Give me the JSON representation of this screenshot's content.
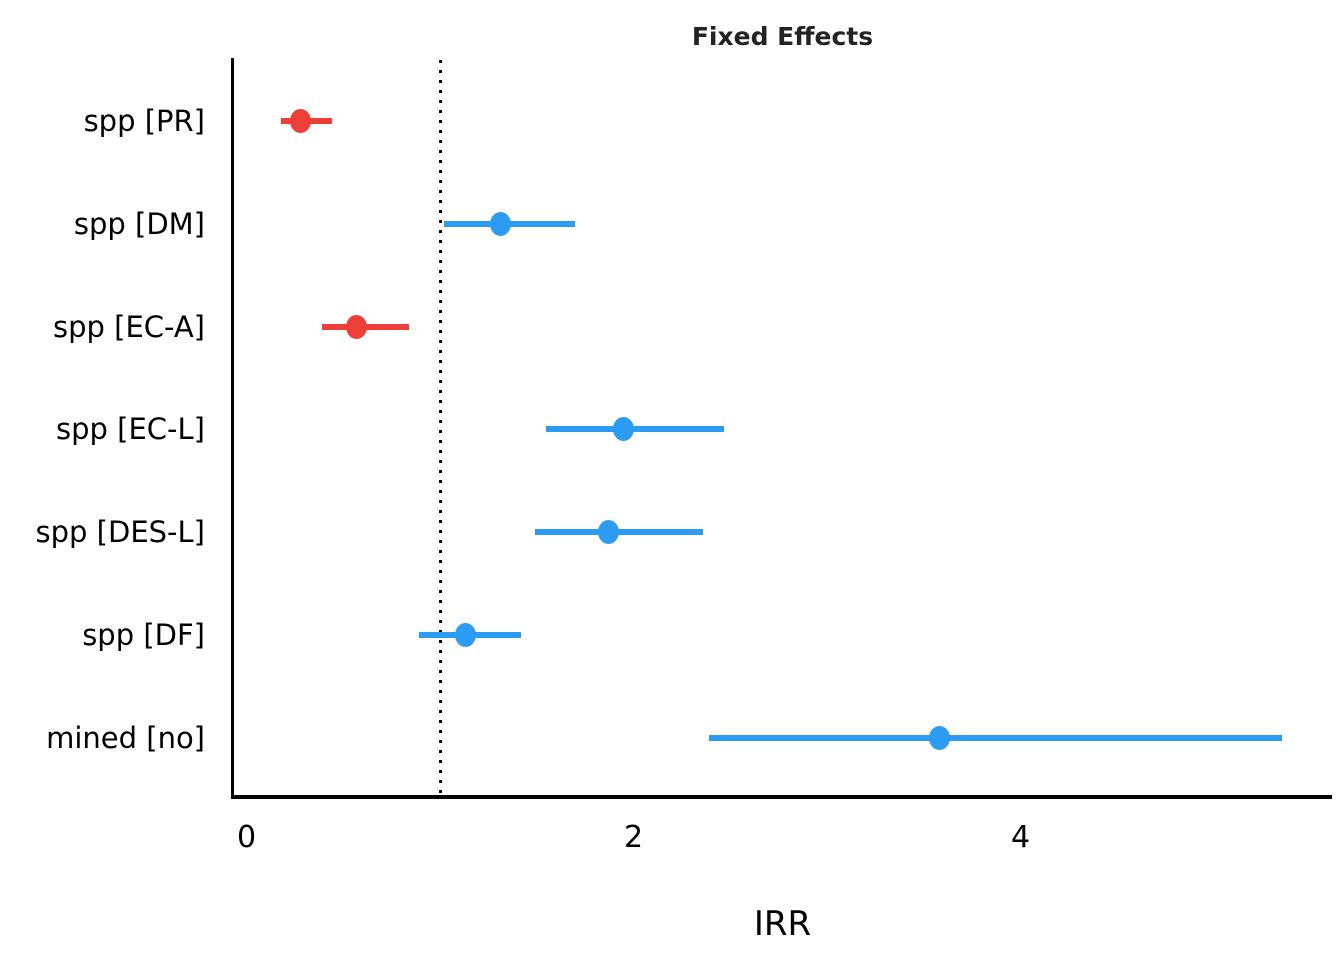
{
  "chart_data": {
    "type": "scatter",
    "subtype": "forest-plot-dot-whisker",
    "title": "Fixed Effects",
    "xlabel": "IRR",
    "ylabel": "",
    "x_ticks": [
      "0",
      "2",
      "4"
    ],
    "x_tick_values": [
      0,
      2,
      4
    ],
    "x_range": [
      -0.07,
      5.61
    ],
    "reference_line_x": 1,
    "reference_line_style": "dotted",
    "grid": "off",
    "legend": "none",
    "rows": [
      {
        "label": "spp [PR]",
        "estimate": 0.28,
        "ci_low": 0.18,
        "ci_high": 0.44,
        "direction": "negative"
      },
      {
        "label": "spp [DM]",
        "estimate": 1.31,
        "ci_low": 1.02,
        "ci_high": 1.7,
        "direction": "positive"
      },
      {
        "label": "spp [EC-A]",
        "estimate": 0.57,
        "ci_low": 0.39,
        "ci_high": 0.84,
        "direction": "negative"
      },
      {
        "label": "spp [EC-L]",
        "estimate": 1.95,
        "ci_low": 1.55,
        "ci_high": 2.47,
        "direction": "positive"
      },
      {
        "label": "spp [DES-L]",
        "estimate": 1.87,
        "ci_low": 1.49,
        "ci_high": 2.36,
        "direction": "positive"
      },
      {
        "label": "spp [DF]",
        "estimate": 1.13,
        "ci_low": 0.89,
        "ci_high": 1.42,
        "direction": "positive"
      },
      {
        "label": "mined [no]",
        "estimate": 3.58,
        "ci_low": 2.39,
        "ci_high": 5.35,
        "direction": "positive"
      }
    ],
    "colors": {
      "negative": "#ee3e38",
      "positive": "#2b9cf2",
      "reference_line": "#000000",
      "axis": "#000000",
      "text": "#000000",
      "title": "#232323"
    }
  }
}
